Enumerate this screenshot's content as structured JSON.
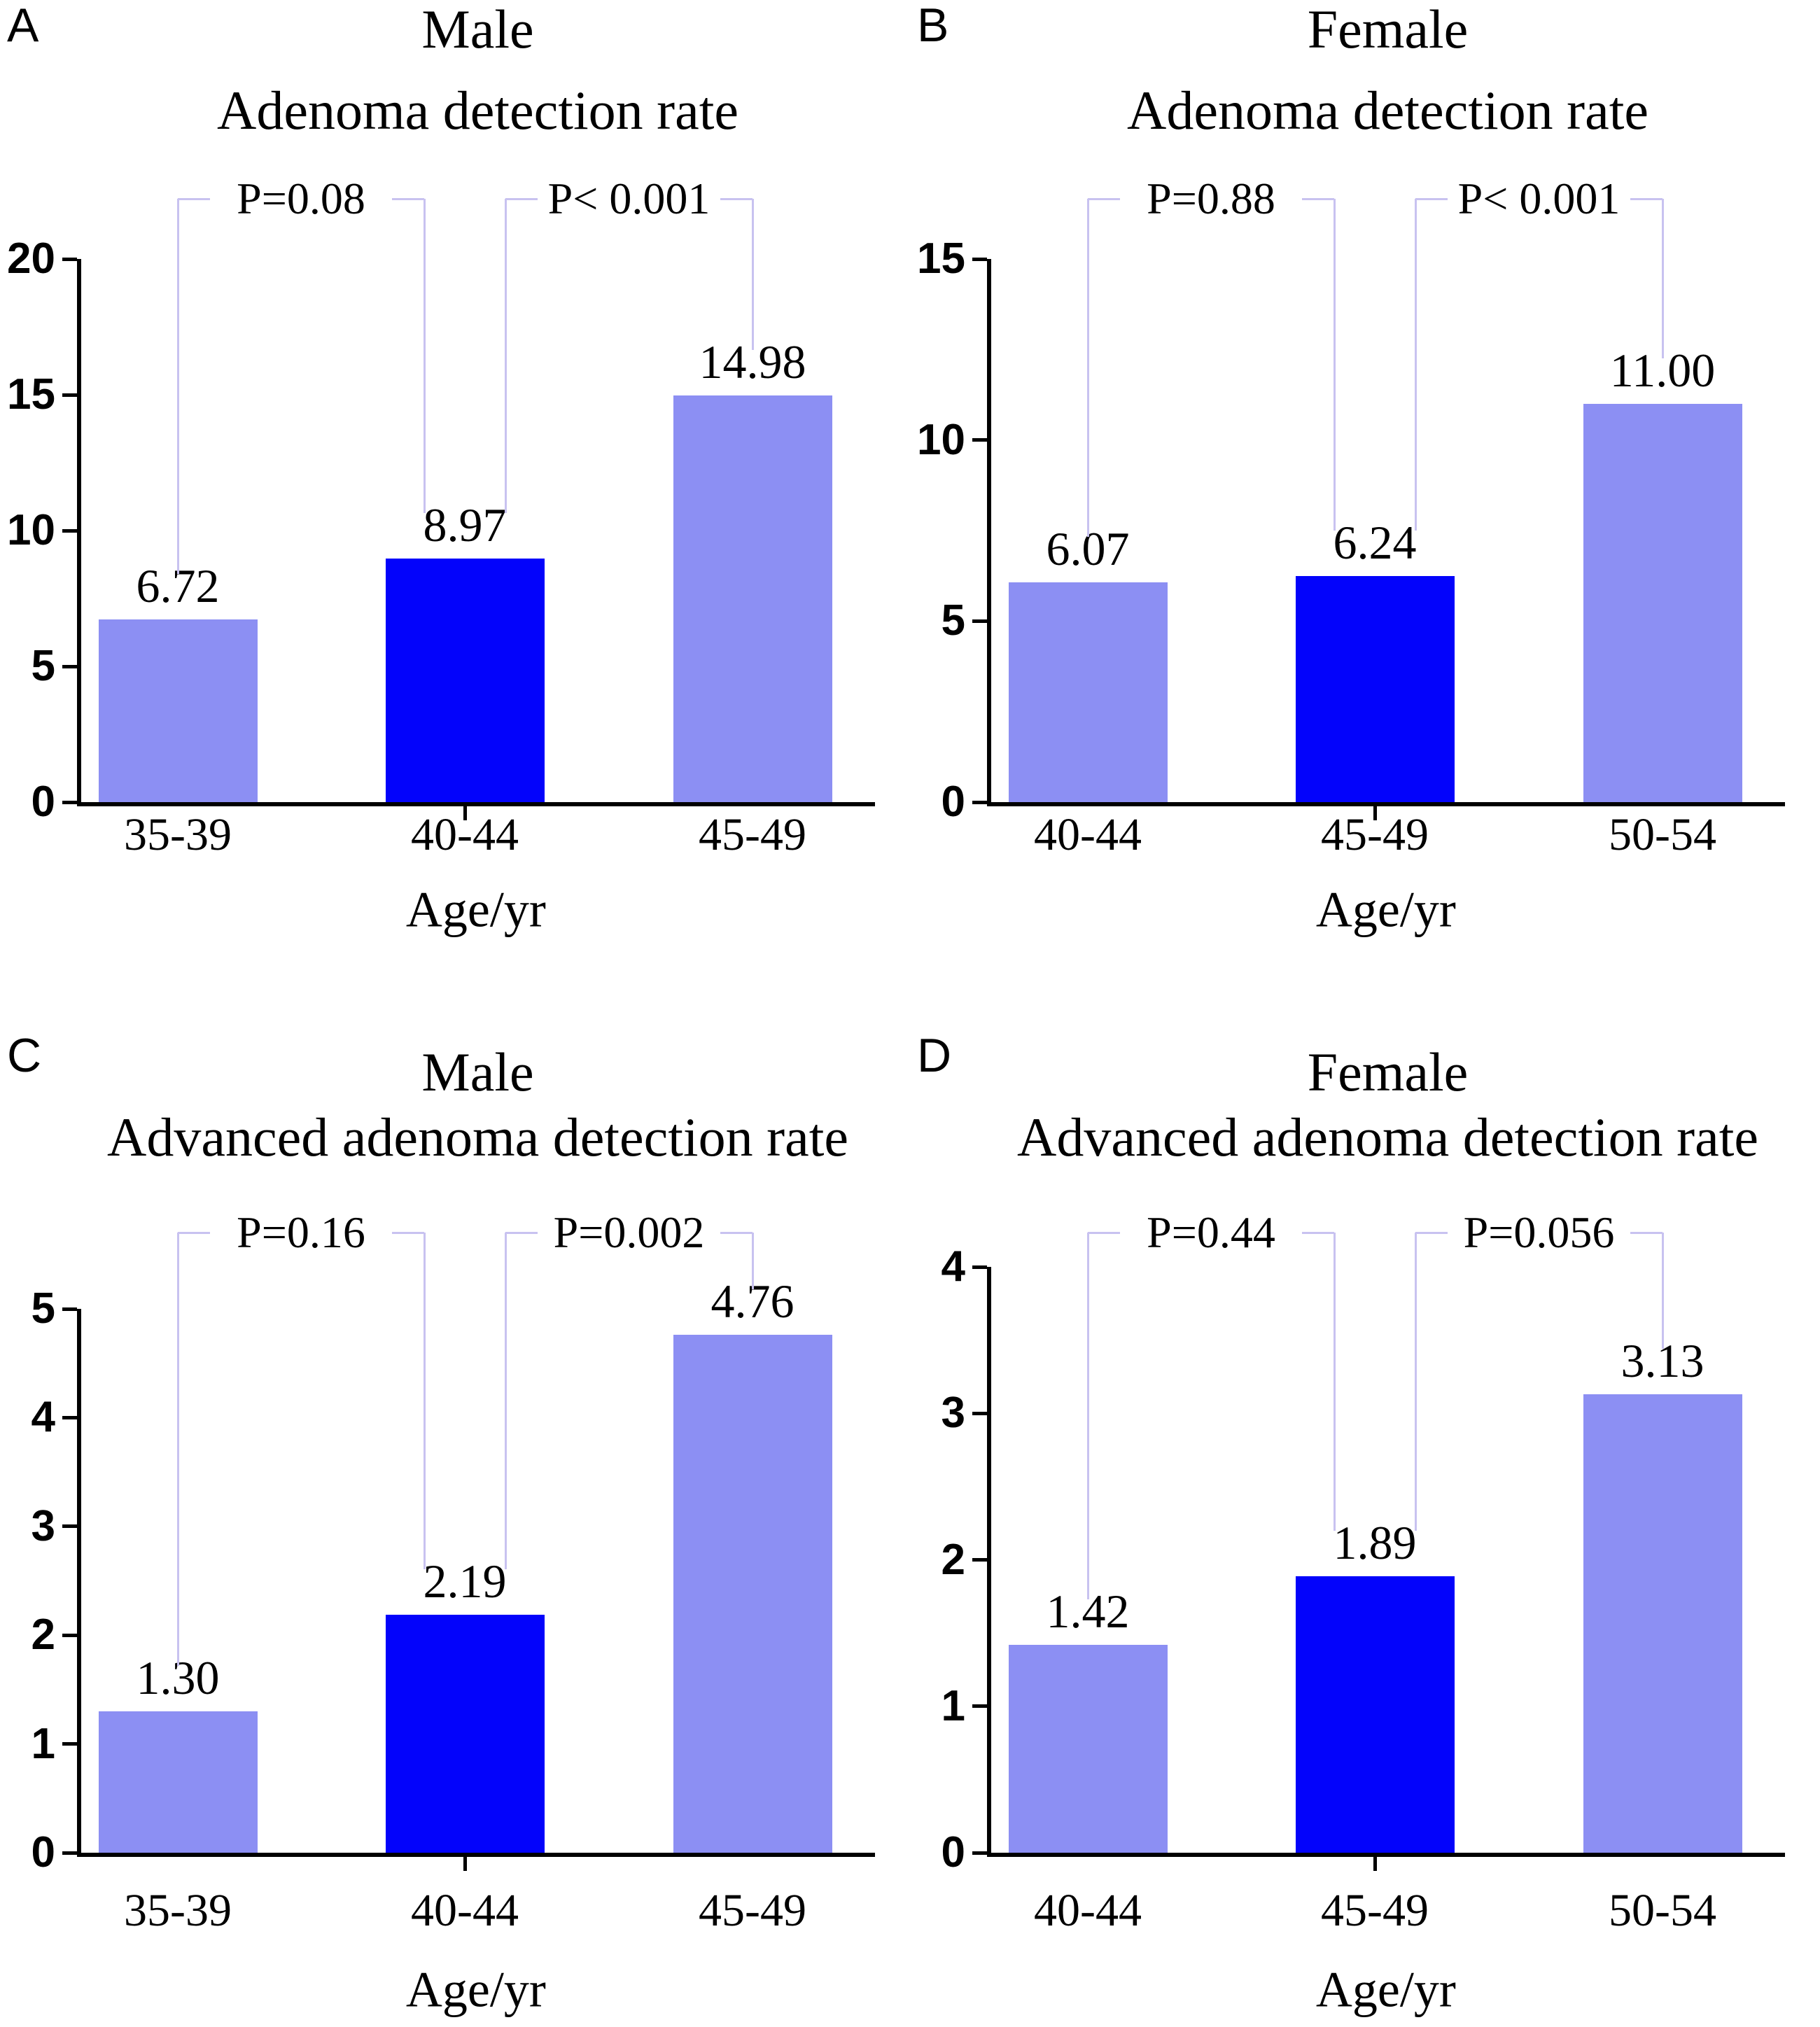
{
  "figure": {
    "background": "#ffffff"
  },
  "colors": {
    "bar_light": "#8c8ff3",
    "bar_dark": "#0303fb",
    "bracket_line": "#c8c2f0",
    "axis": "#000000",
    "text": "#000000"
  },
  "chart_data": [
    {
      "type": "bar",
      "panel_label": "A",
      "title": "Male",
      "subtitle": "Adenoma detection rate",
      "xlabel": "Age/yr",
      "categories": [
        "35-39",
        "40-44",
        "45-49"
      ],
      "values": [
        6.72,
        8.97,
        14.98
      ],
      "value_labels": [
        "6.72",
        "8.97",
        "14.98"
      ],
      "bar_colors": [
        "light",
        "dark",
        "light"
      ],
      "ylim": [
        0,
        20
      ],
      "yticks": [
        "0",
        "5",
        "10",
        "15",
        "20"
      ],
      "grid": false,
      "legend": "none",
      "annotations": [
        {
          "label": "P=0.08",
          "from": 0,
          "to": 1
        },
        {
          "label": "P< 0.001",
          "from": 1,
          "to": 2
        }
      ]
    },
    {
      "type": "bar",
      "panel_label": "B",
      "title": "Female",
      "subtitle": "Adenoma detection rate",
      "xlabel": "Age/yr",
      "categories": [
        "40-44",
        "45-49",
        "50-54"
      ],
      "values": [
        6.07,
        6.24,
        11.0
      ],
      "value_labels": [
        "6.07",
        "6.24",
        "11.00"
      ],
      "bar_colors": [
        "light",
        "dark",
        "light"
      ],
      "ylim": [
        0,
        15
      ],
      "yticks": [
        "0",
        "5",
        "10",
        "15"
      ],
      "grid": false,
      "legend": "none",
      "annotations": [
        {
          "label": "P=0.88",
          "from": 0,
          "to": 1
        },
        {
          "label": "P< 0.001",
          "from": 1,
          "to": 2
        }
      ]
    },
    {
      "type": "bar",
      "panel_label": "C",
      "title": "Male",
      "subtitle": "Advanced adenoma detection rate",
      "xlabel": "Age/yr",
      "categories": [
        "35-39",
        "40-44",
        "45-49"
      ],
      "values": [
        1.3,
        2.19,
        4.76
      ],
      "value_labels": [
        "1.30",
        "2.19",
        "4.76"
      ],
      "bar_colors": [
        "light",
        "dark",
        "light"
      ],
      "ylim": [
        0,
        5
      ],
      "yticks": [
        "0",
        "1",
        "2",
        "3",
        "4",
        "5"
      ],
      "grid": false,
      "legend": "none",
      "annotations": [
        {
          "label": "P=0.16",
          "from": 0,
          "to": 1
        },
        {
          "label": "P=0.002",
          "from": 1,
          "to": 2
        }
      ]
    },
    {
      "type": "bar",
      "panel_label": "D",
      "title": "Female",
      "subtitle": "Advanced adenoma detection rate",
      "xlabel": "Age/yr",
      "categories": [
        "40-44",
        "45-49",
        "50-54"
      ],
      "values": [
        1.42,
        1.89,
        3.13
      ],
      "value_labels": [
        "1.42",
        "1.89",
        "3.13"
      ],
      "bar_colors": [
        "light",
        "dark",
        "light"
      ],
      "ylim": [
        0,
        4
      ],
      "yticks": [
        "0",
        "1",
        "2",
        "3",
        "4"
      ],
      "grid": false,
      "legend": "none",
      "annotations": [
        {
          "label": "P=0.44",
          "from": 0,
          "to": 1
        },
        {
          "label": "P=0.056",
          "from": 1,
          "to": 2
        }
      ]
    }
  ]
}
